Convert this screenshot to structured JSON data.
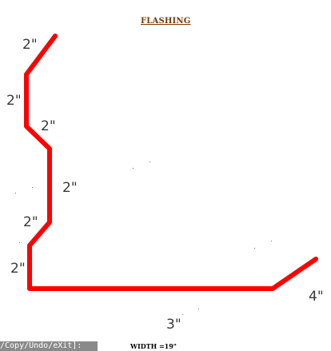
{
  "title": "FLASHING",
  "segments": [
    {
      "label": "2\""
    },
    {
      "label": "2\""
    },
    {
      "label": "2\""
    },
    {
      "label": "2\""
    },
    {
      "label": "2\""
    },
    {
      "label": "2\""
    },
    {
      "label": "3\""
    },
    {
      "label": "4\""
    }
  ],
  "width_label": "WIDTH =19\"",
  "command_bar": "/Copy/Undo/eXit]:",
  "colors": {
    "profile": "#ff0000",
    "title": "#7a3a05",
    "dimension_text": "#3a3a3a"
  }
}
